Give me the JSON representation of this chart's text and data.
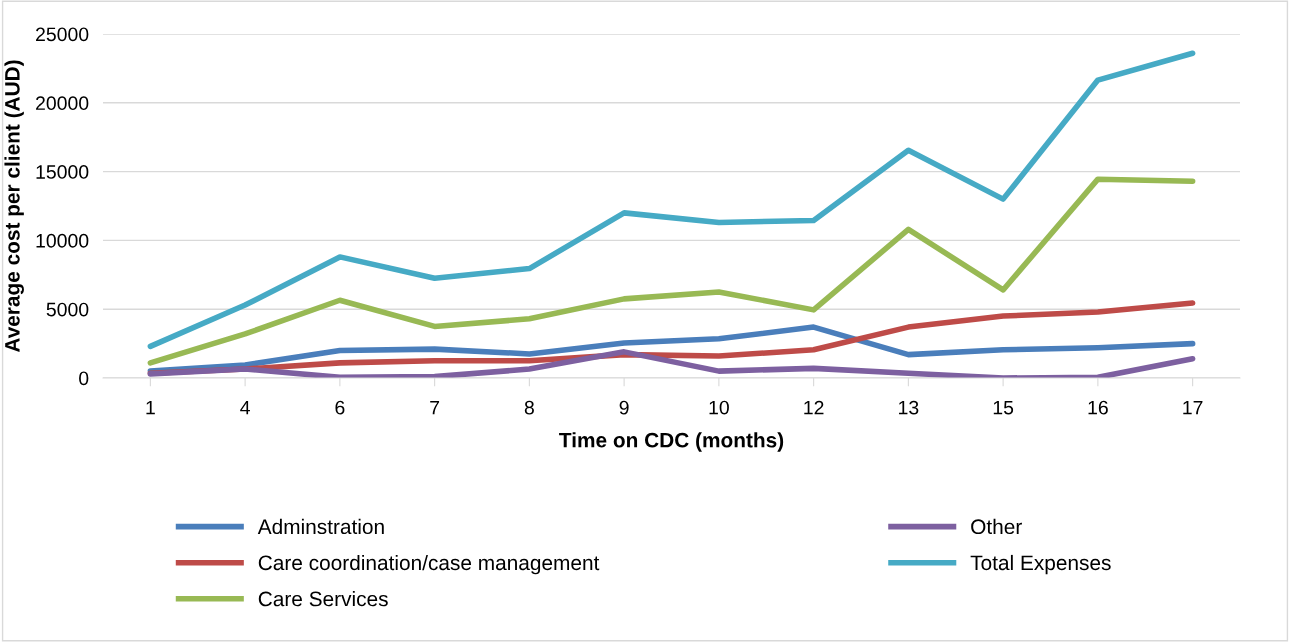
{
  "chart_data": {
    "type": "line",
    "xlabel": "Time on CDC (months)",
    "ylabel": "Average cost per client (AUD)",
    "categories": [
      "1",
      "4",
      "6",
      "7",
      "8",
      "9",
      "10",
      "12",
      "13",
      "15",
      "16",
      "17"
    ],
    "series": [
      {
        "name": "Adminstration",
        "color": "#4a7ebb",
        "values": [
          500,
          950,
          2000,
          2100,
          1750,
          2550,
          2850,
          3700,
          1700,
          2050,
          2200,
          2500
        ]
      },
      {
        "name": "Care coordination/case management",
        "color": "#be4b48",
        "values": [
          350,
          650,
          1100,
          1250,
          1250,
          1700,
          1600,
          2050,
          3700,
          4500,
          4800,
          5450
        ]
      },
      {
        "name": "Care Services",
        "color": "#98b954",
        "values": [
          1100,
          3200,
          5650,
          3750,
          4300,
          5750,
          6250,
          4950,
          10800,
          6400,
          14450,
          14300
        ]
      },
      {
        "name": "Other",
        "color": "#7d60a0",
        "values": [
          300,
          650,
          50,
          100,
          650,
          1900,
          500,
          700,
          350,
          0,
          50,
          1400
        ]
      },
      {
        "name": "Total Expenses",
        "color": "#46aac5",
        "values": [
          2300,
          5300,
          8800,
          7250,
          7950,
          12000,
          11300,
          11450,
          16550,
          13000,
          21650,
          23600
        ]
      }
    ],
    "ylim": [
      0,
      25000
    ],
    "yticks": [
      0,
      5000,
      10000,
      15000,
      20000,
      25000
    ],
    "grid": "y",
    "legend": "bottom",
    "marker": "none",
    "line_style": "solid"
  }
}
